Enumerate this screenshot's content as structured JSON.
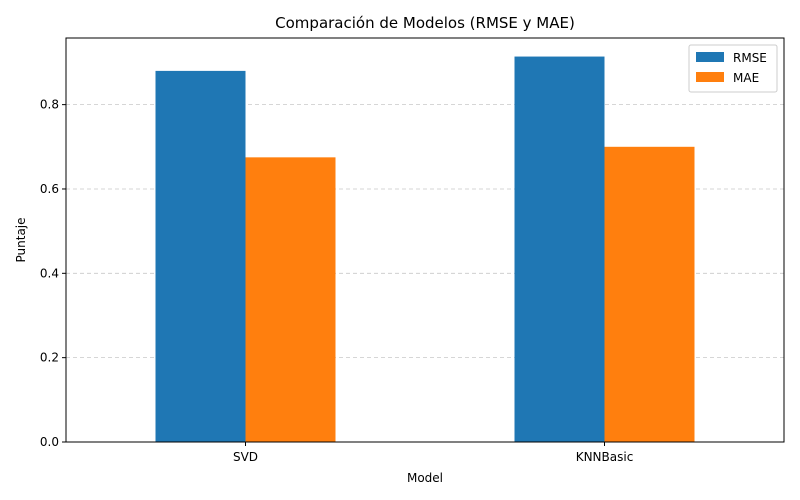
{
  "chart_data": {
    "type": "bar",
    "title": "Comparación de Modelos (RMSE y MAE)",
    "xlabel": "Model",
    "ylabel": "Puntaje",
    "categories": [
      "SVD",
      "KNNBasic"
    ],
    "series": [
      {
        "name": "RMSE",
        "values": [
          0.88,
          0.914
        ],
        "color": "#1f77b4"
      },
      {
        "name": "MAE",
        "values": [
          0.675,
          0.7
        ],
        "color": "#ff7f0e"
      }
    ],
    "ylim": [
      0,
      0.958
    ],
    "yticks": [
      0.0,
      0.2,
      0.4,
      0.6,
      0.8
    ],
    "ytick_labels": [
      "0.0",
      "0.2",
      "0.4",
      "0.6",
      "0.8"
    ],
    "grid": {
      "axis": "y",
      "style": "dashed"
    },
    "legend": "top-right"
  }
}
